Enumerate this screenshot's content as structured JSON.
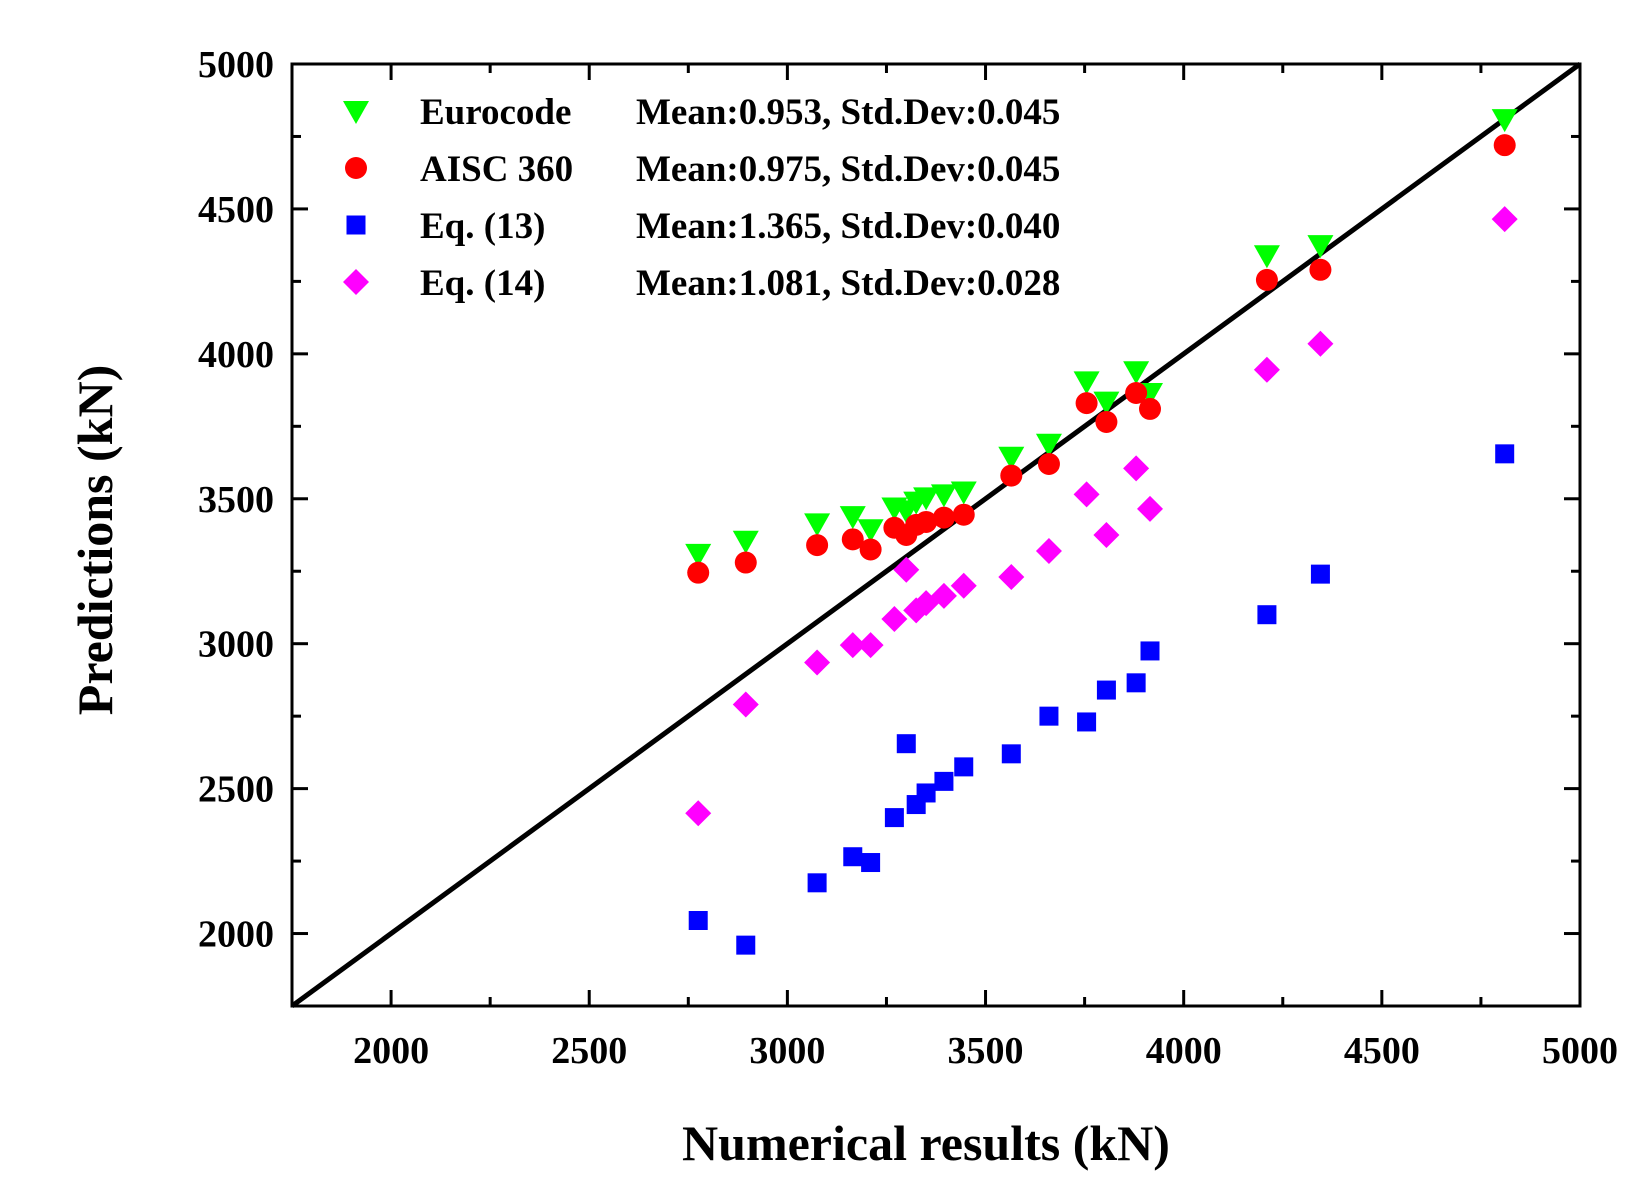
{
  "chart_data": {
    "type": "scatter",
    "title": "",
    "xlabel": "Numerical results (kN)",
    "ylabel": "Predictions (kN)",
    "xlim": [
      1750,
      5000
    ],
    "ylim": [
      1750,
      5000
    ],
    "xticks": [
      2000,
      2500,
      3000,
      3500,
      4000,
      4500,
      5000
    ],
    "yticks": [
      2000,
      2500,
      3000,
      3500,
      4000,
      4500,
      5000
    ],
    "reference_line": {
      "from": [
        1750,
        1750
      ],
      "to": [
        5000,
        5000
      ],
      "color": "#000000"
    },
    "legend_position": "top-left",
    "x": [
      2775,
      2895,
      3075,
      3165,
      3210,
      3270,
      3300,
      3325,
      3350,
      3395,
      3445,
      3565,
      3660,
      3755,
      3805,
      3880,
      3915,
      4210,
      4345,
      4810
    ],
    "series": [
      {
        "name": "Eurocode",
        "stats": "Mean:0.953, Std.Dev:0.045",
        "marker": "triangle-down",
        "color": "#00ff00",
        "values": [
          3310,
          3355,
          3415,
          3440,
          3395,
          3470,
          3460,
          3490,
          3505,
          3515,
          3525,
          3645,
          3690,
          3905,
          3835,
          3940,
          3865,
          4340,
          4375,
          4810
        ]
      },
      {
        "name": "AISC 360",
        "stats": "Mean:0.975, Std.Dev:0.045",
        "marker": "circle",
        "color": "#ff0000",
        "values": [
          3245,
          3280,
          3340,
          3360,
          3325,
          3400,
          3375,
          3410,
          3420,
          3435,
          3445,
          3580,
          3620,
          3830,
          3765,
          3865,
          3810,
          4255,
          4290,
          4720
        ]
      },
      {
        "name": "Eq. (13)",
        "stats": "Mean:1.365, Std.Dev:0.040",
        "marker": "square",
        "color": "#0000ff",
        "values": [
          2045,
          1960,
          2175,
          2265,
          2245,
          2400,
          2655,
          2445,
          2485,
          2525,
          2575,
          2620,
          2750,
          2730,
          2840,
          2865,
          2975,
          3100,
          3240,
          3655
        ]
      },
      {
        "name": "Eq. (14)",
        "stats": "Mean:1.081, Std.Dev:0.028",
        "marker": "diamond",
        "color": "#ff00ff",
        "values": [
          2415,
          2790,
          2935,
          2995,
          2995,
          3085,
          3255,
          3115,
          3140,
          3165,
          3200,
          3230,
          3320,
          3515,
          3375,
          3605,
          3465,
          3945,
          4035,
          4465
        ]
      }
    ]
  }
}
